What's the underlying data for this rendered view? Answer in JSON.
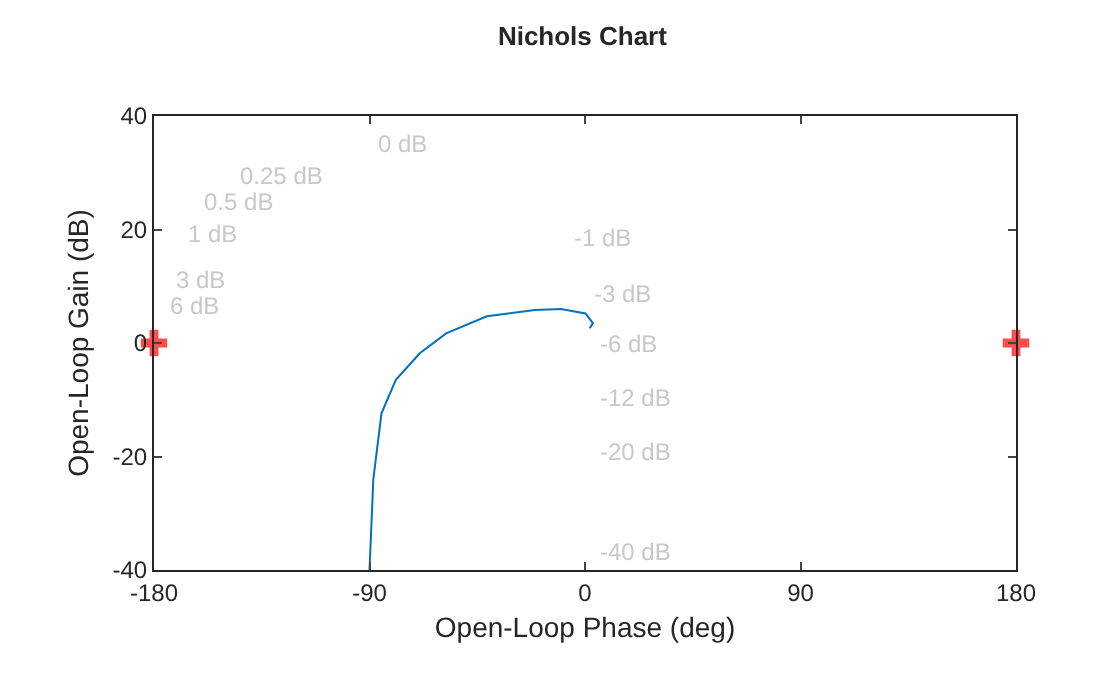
{
  "chart_data": {
    "type": "line",
    "title": "Nichols Chart",
    "xlabel": "Open-Loop Phase (deg)",
    "ylabel": "Open-Loop Gain (dB)",
    "xlim": [
      -180,
      180
    ],
    "xticks": [
      -180,
      -90,
      0,
      90,
      180
    ],
    "ylim": [
      -40,
      40
    ],
    "yticks": [
      -40,
      -20,
      0,
      20,
      40
    ],
    "grid": false,
    "series": [
      {
        "color": "#0072bd",
        "x": [
          -90,
          -88.4,
          -85,
          -79,
          -69,
          -58,
          -41,
          -21,
          -10,
          0.2,
          3.3,
          2
        ],
        "values": [
          -40,
          -24,
          -12.4,
          -6.5,
          -1.8,
          1.7,
          4.7,
          5.8,
          6,
          5.2,
          3.5,
          2.6
        ]
      },
      {
        "type": "scatter",
        "marker": "cross",
        "color": "#ff4d4d",
        "x": [
          -180,
          180
        ],
        "values": [
          0,
          0
        ]
      }
    ],
    "annotations": [
      "0 dB",
      "0.25 dB",
      "0.5 dB",
      "1 dB",
      "3 dB",
      "6 dB",
      "-1 dB",
      "-3 dB",
      "-6 dB",
      "-12 dB",
      "-20 dB",
      "-40 dB"
    ]
  }
}
